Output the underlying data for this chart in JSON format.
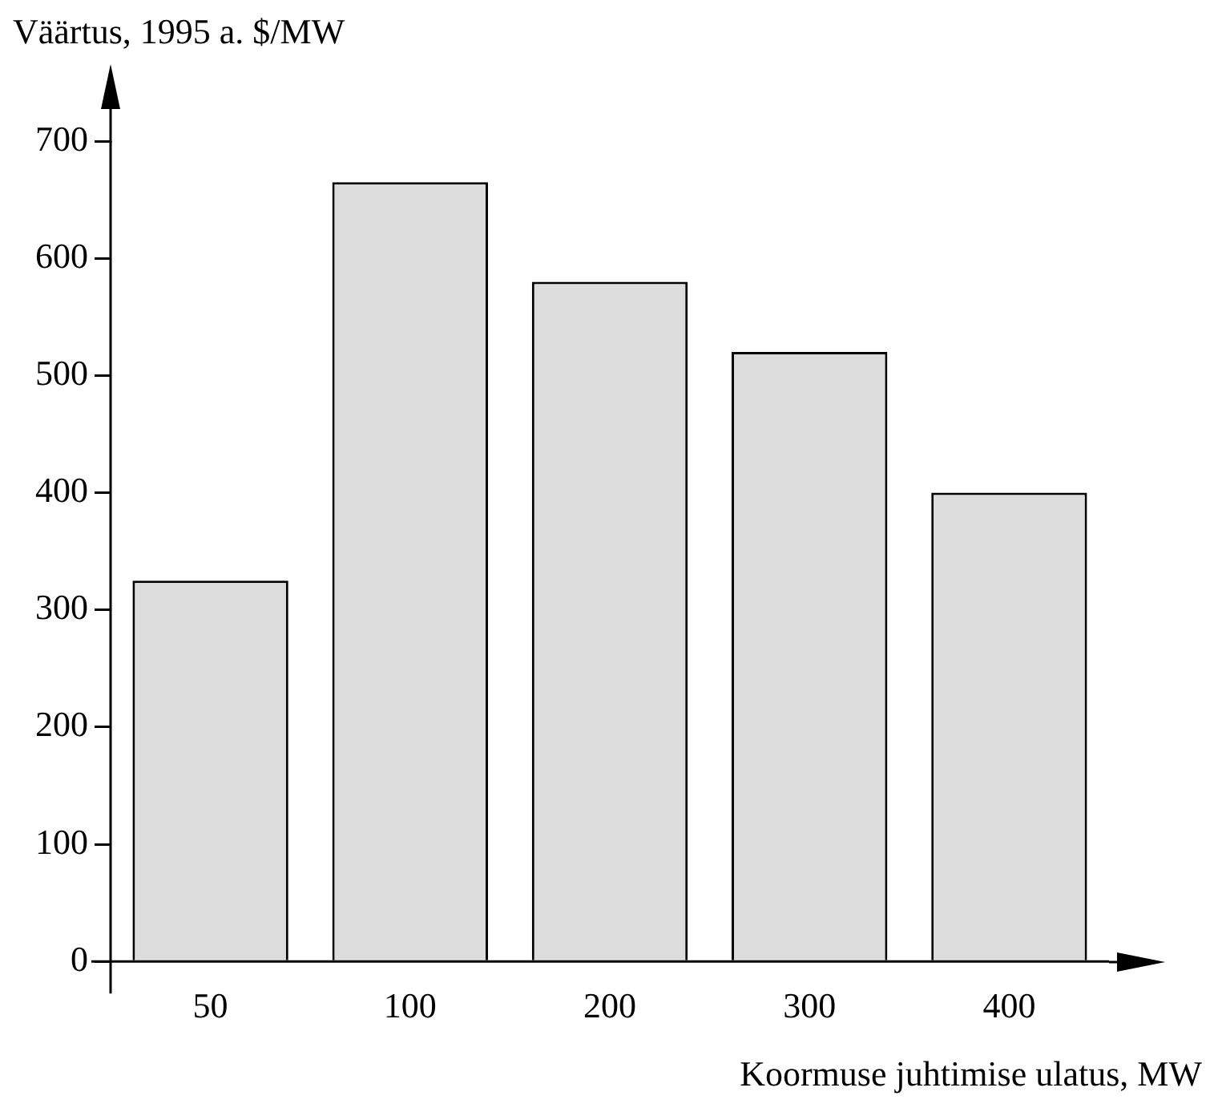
{
  "chart_data": {
    "type": "bar",
    "ylabel": "Väärtus, 1995 a. $/MW",
    "xlabel": "Koormuse juhtimise ulatus, MW",
    "categories": [
      "50",
      "100",
      "200",
      "300",
      "400"
    ],
    "values": [
      325,
      665,
      580,
      520,
      400
    ],
    "color": "#dcdcdc",
    "ylim": [
      0,
      700
    ],
    "yticks": [
      0,
      100,
      200,
      300,
      400,
      500,
      600,
      700
    ],
    "grid": false,
    "legend": false
  }
}
